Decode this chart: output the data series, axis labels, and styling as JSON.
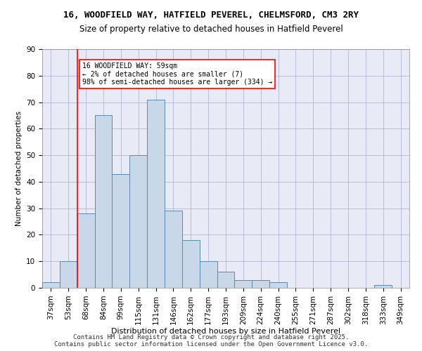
{
  "title_line1": "16, WOODFIELD WAY, HATFIELD PEVEREL, CHELMSFORD, CM3 2RY",
  "title_line2": "Size of property relative to detached houses in Hatfield Peverel",
  "xlabel": "Distribution of detached houses by size in Hatfield Peverel",
  "ylabel": "Number of detached properties",
  "categories": [
    "37sqm",
    "53sqm",
    "68sqm",
    "84sqm",
    "99sqm",
    "115sqm",
    "131sqm",
    "146sqm",
    "162sqm",
    "177sqm",
    "193sqm",
    "209sqm",
    "224sqm",
    "240sqm",
    "255sqm",
    "271sqm",
    "287sqm",
    "302sqm",
    "318sqm",
    "333sqm",
    "349sqm"
  ],
  "values": [
    2,
    10,
    28,
    65,
    43,
    50,
    71,
    29,
    18,
    10,
    6,
    3,
    3,
    2,
    0,
    0,
    0,
    0,
    0,
    1,
    0
  ],
  "bar_color": "#c8d8e8",
  "bar_edge_color": "#5a8ab0",
  "ylim": [
    0,
    90
  ],
  "yticks": [
    0,
    10,
    20,
    30,
    40,
    50,
    60,
    70,
    80,
    90
  ],
  "red_line_x": 1.0,
  "annotation_text": "16 WOODFIELD WAY: 59sqm\n← 2% of detached houses are smaller (7)\n98% of semi-detached houses are larger (334) →",
  "footer_text": "Contains HM Land Registry data © Crown copyright and database right 2025.\nContains public sector information licensed under the Open Government Licence v3.0.",
  "grid_color": "#aaaacc",
  "background_color": "#e8eaf6"
}
